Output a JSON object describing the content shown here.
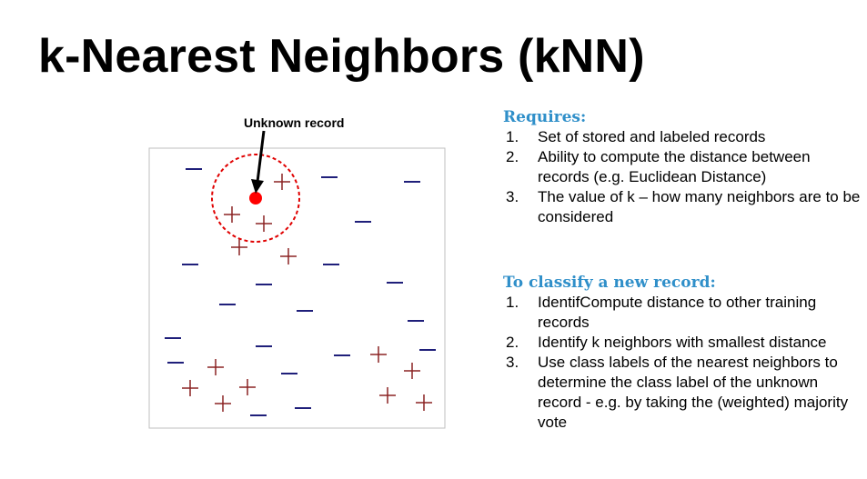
{
  "title": "k-Nearest Neighbors (kNN)",
  "diagram": {
    "pointer_label": "Unknown record",
    "colors": {
      "minus": "#1f1f7a",
      "plus": "#8b2323",
      "unknown": "#ff0000",
      "circle": "#e00000",
      "frame": "#bfbfbf"
    }
  },
  "requires": {
    "heading": "Requires:",
    "items": [
      {
        "num": "1.",
        "text": "Set of stored and labeled records"
      },
      {
        "num": "2.",
        "text": "Ability to compute the distance between records (e.g. Euclidean Distance)"
      },
      {
        "num": "3.",
        "text": "The value of k – how many neighbors are to be considered"
      }
    ]
  },
  "classify": {
    "heading": "To classify a new record:",
    "items": [
      {
        "num": "1.",
        "text": "IdentifCompute distance to other training records"
      },
      {
        "num": "2.",
        "text": "Identify k neighbors with smallest distance"
      },
      {
        "num": "3.",
        "text": "Use class labels of the nearest neighbors to determine the class label of the unknown record - e.g. by taking the (weighted) majority vote"
      }
    ]
  }
}
